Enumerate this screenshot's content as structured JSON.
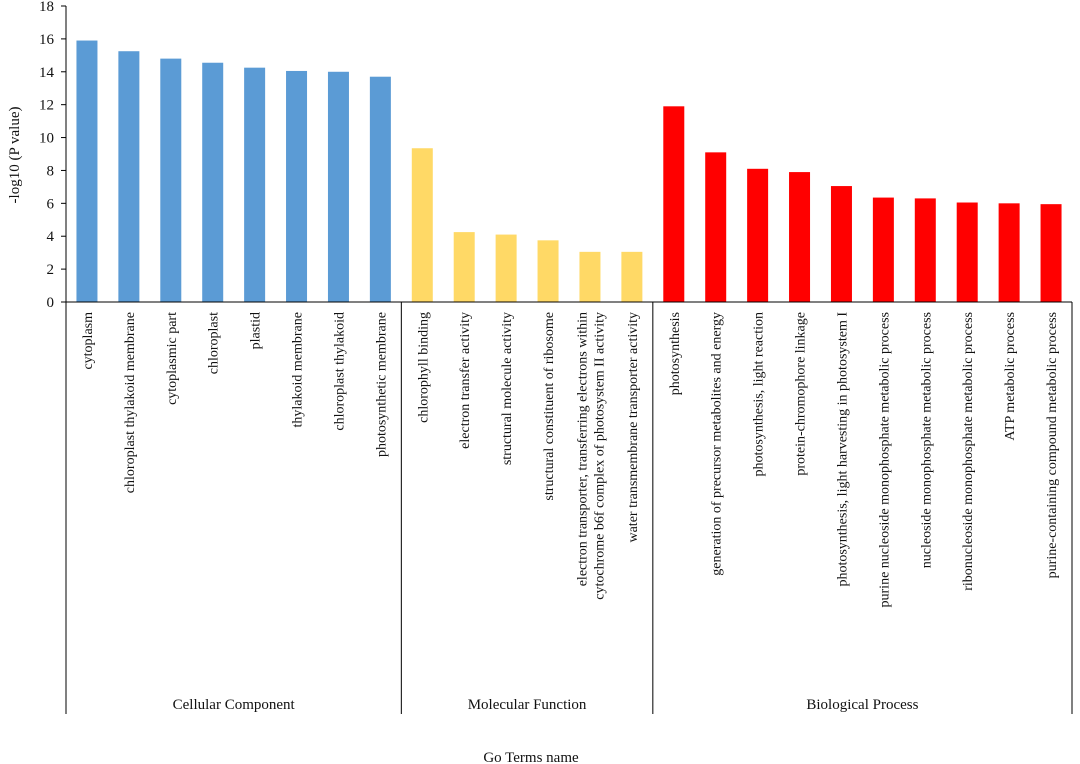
{
  "chart_data": {
    "type": "bar",
    "ylabel": "-log10 (P value)",
    "xlabel": "Go Terms name",
    "ylim": [
      0,
      18
    ],
    "yticks": [
      0,
      2,
      4,
      6,
      8,
      10,
      12,
      14,
      16,
      18
    ],
    "grid": false,
    "groups": [
      {
        "name": "Cellular Component",
        "color": "#5b9bd5",
        "count": 8
      },
      {
        "name": "Molecular Function",
        "color": "#ffd966",
        "count": 6
      },
      {
        "name": "Biological Process",
        "color": "#ff0000",
        "count": 10
      }
    ],
    "categories": [
      "cytoplasm",
      "chloroplast thylakoid membrane",
      "cytoplasmic part",
      "chloroplast",
      "plastid",
      "thylakoid membrane",
      "chloroplast thylakoid",
      "photosynthetic membrane",
      "chlorophyll binding",
      "electron transfer activity",
      "structural molecule activity",
      "structural constituent of ribosome",
      "electron transporter, transferring electrons within cytochrome b6f complex of photosystem II activity",
      "water transmembrane transporter activity",
      "photosynthesis",
      "generation of precursor metabolites and energy",
      "photosynthesis, light reaction",
      "protein-chromophore linkage",
      "photosynthesis, light harvesting in photosystem I",
      "purine nucleoside monophosphate metabolic process",
      "nucleoside monophosphate metabolic process",
      "ribonucleoside monophosphate metabolic process",
      "ATP metabolic process",
      "purine-containing compound metabolic process"
    ],
    "label_lines": [
      [
        "cytoplasm"
      ],
      [
        "chloroplast thylakoid membrane"
      ],
      [
        "cytoplasmic part"
      ],
      [
        "chloroplast"
      ],
      [
        "plastid"
      ],
      [
        "thylakoid membrane"
      ],
      [
        "chloroplast thylakoid"
      ],
      [
        "photosynthetic membrane"
      ],
      [
        "chlorophyll binding"
      ],
      [
        "electron transfer activity"
      ],
      [
        "structural molecule activity"
      ],
      [
        "structural constituent of ribosome"
      ],
      [
        "electron transporter, transferring electrons within",
        "cytochrome b6f complex of photosystem II activity"
      ],
      [
        "water transmembrane transporter activity"
      ],
      [
        "photosynthesis"
      ],
      [
        "generation of precursor metabolites and energy"
      ],
      [
        "photosynthesis, light reaction"
      ],
      [
        "protein-chromophore linkage"
      ],
      [
        "photosynthesis, light harvesting in  photosystem I"
      ],
      [
        "purine nucleoside monophosphate metabolic process"
      ],
      [
        "nucleoside monophosphate metabolic process"
      ],
      [
        "ribonucleoside monophosphate metabolic process"
      ],
      [
        "ATP metabolic process"
      ],
      [
        "purine-containing compound metabolic process"
      ]
    ],
    "values": [
      15.9,
      15.25,
      14.8,
      14.55,
      14.25,
      14.05,
      14.0,
      13.7,
      9.35,
      4.25,
      4.1,
      3.75,
      3.05,
      3.05,
      11.9,
      9.1,
      8.1,
      7.9,
      7.05,
      6.35,
      6.3,
      6.05,
      6.0,
      5.95
    ]
  }
}
